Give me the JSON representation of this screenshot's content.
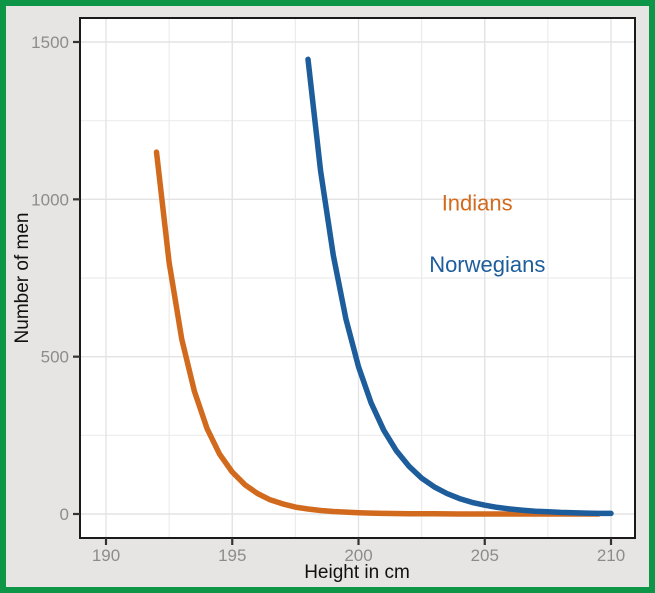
{
  "figure": {
    "border_color": "#0d9648",
    "background_color": "#e6e5e3",
    "panel_color": "#ffffff",
    "panel_border_color": "#1a1a1a",
    "grid_major_color": "#e3e3e3",
    "grid_minor_color": "#ececec",
    "tick_color": "#333333",
    "tick_label_color": "#8c8c8c"
  },
  "chart_data": {
    "type": "line",
    "title": "",
    "xlabel": "Height in cm",
    "ylabel": "Number of men",
    "x_ticks": [
      190,
      195,
      200,
      205,
      210
    ],
    "x_minor_ticks": [
      192.5,
      197.5,
      202.5,
      207.5
    ],
    "y_ticks": [
      0,
      500,
      1000,
      1500
    ],
    "y_minor_ticks": [
      250,
      750,
      1250
    ],
    "xlim": [
      189.0,
      211.0
    ],
    "ylim": [
      -75,
      1575
    ],
    "grid": true,
    "legend_position": "text annotations inside plot",
    "series": [
      {
        "name": "Indians",
        "color": "#d26a1e",
        "x": [
          192,
          192.5,
          193,
          193.5,
          194,
          194.5,
          195,
          195.5,
          196,
          196.5,
          197,
          197.5,
          198,
          198.5,
          199,
          199.5,
          200,
          200.5,
          201,
          202,
          203,
          204,
          205,
          206,
          207,
          208,
          209,
          209.5
        ],
        "y": [
          1150,
          800,
          555,
          390,
          272,
          190,
          133,
          93,
          65,
          45,
          32,
          22,
          16,
          11,
          8,
          6,
          4,
          3,
          2,
          1,
          1,
          0,
          0,
          0,
          0,
          0,
          0,
          0
        ]
      },
      {
        "name": "Norwegians",
        "color": "#1d5d9b",
        "x": [
          198,
          198.5,
          199,
          199.5,
          200,
          200.5,
          201,
          201.5,
          202,
          202.5,
          203,
          203.5,
          204,
          204.5,
          205,
          205.5,
          206,
          206.5,
          207,
          207.5,
          208,
          208.5,
          209,
          209.5,
          210
        ],
        "y": [
          1445,
          1090,
          822,
          620,
          468,
          353,
          266,
          201,
          152,
          114,
          86,
          65,
          49,
          37,
          28,
          21,
          16,
          12,
          9,
          7,
          5,
          4,
          3,
          2,
          2
        ]
      }
    ],
    "annotations": [
      {
        "text": "Indians",
        "color": "#d26a1e",
        "x": 204.7,
        "y": 990
      },
      {
        "text": "Norwegians",
        "color": "#1d5d9b",
        "x": 205.1,
        "y": 795
      }
    ]
  }
}
